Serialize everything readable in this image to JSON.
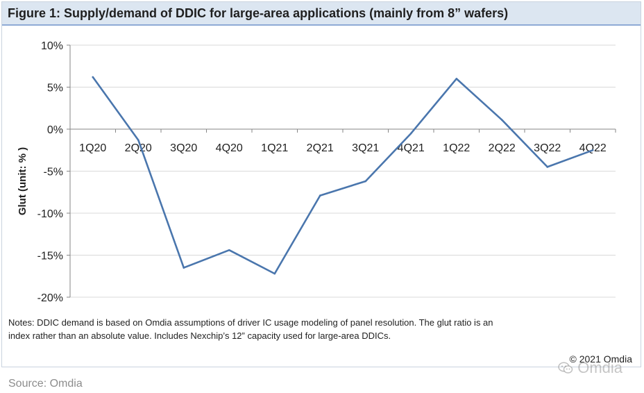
{
  "figure": {
    "title": "Figure 1: Supply/demand of DDIC for large-area applications (mainly from 8” wafers)",
    "notes": "Notes: DDIC demand is based on Omdia assumptions of driver IC usage modeling of panel resolution. The glut ratio is an index rather than an absolute value. Includes Nexchip’s 12” capacity used for large-area DDICs.",
    "copyright": "© 2021 Omdia",
    "watermark_text": "Omdia",
    "watermark_icon": "wechat-icon",
    "source": "Source: Omdia"
  },
  "chart_data": {
    "type": "line",
    "title": "",
    "xlabel": "",
    "ylabel": "Glut (unit: % )",
    "categories": [
      "1Q20",
      "2Q20",
      "3Q20",
      "4Q20",
      "1Q21",
      "2Q21",
      "3Q21",
      "4Q21",
      "1Q22",
      "2Q22",
      "3Q22",
      "4Q22"
    ],
    "series": [
      {
        "values": [
          6.2,
          -1.3,
          -16.5,
          -14.4,
          -17.2,
          -7.9,
          -6.2,
          -0.5,
          6.0,
          1.1,
          -4.5,
          -2.5
        ]
      }
    ],
    "ylim": [
      -20,
      10
    ],
    "yticks": [
      10,
      5,
      0,
      -5,
      -10,
      -15,
      -20
    ],
    "ytick_labels": [
      "10%",
      "5%",
      "0%",
      "-5%",
      "-10%",
      "-15%",
      "-20%"
    ],
    "grid": true,
    "legend": "none",
    "line_color": "#4a76ad",
    "grid_color": "#d9d9d9"
  }
}
